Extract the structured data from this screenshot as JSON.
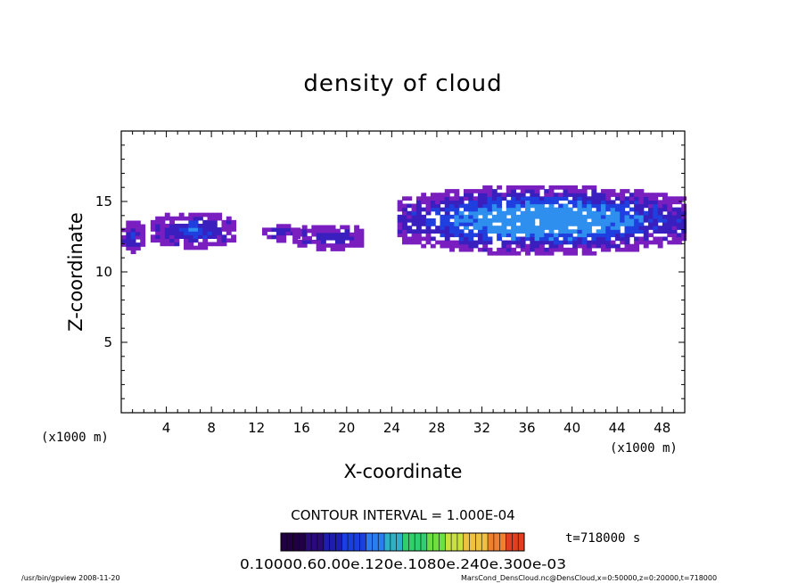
{
  "chart_data": {
    "type": "heatmap",
    "title": "density of cloud",
    "xlabel": "X-coordinate",
    "ylabel": "Z-coordinate",
    "x_unit": "(x1000 m)",
    "y_unit": "(x1000 m)",
    "xlim": [
      0,
      50
    ],
    "ylim": [
      0,
      20
    ],
    "xticks": [
      "4",
      "8",
      "12",
      "16",
      "20",
      "24",
      "28",
      "32",
      "36",
      "40",
      "44",
      "48"
    ],
    "yticks": [
      "5",
      "10",
      "15"
    ],
    "contour_interval": "CONTOUR INTERVAL = 1.000E-04",
    "time_label": "t=718000 s",
    "colorbar_label": "0.10000.60.00e.120e.1080e.240e.300e-03",
    "colorbar_colors": [
      "#200040",
      "#2a0a7a",
      "#1d1db0",
      "#1a3ee0",
      "#2a7cf0",
      "#30b0c8",
      "#2fcf70",
      "#6fdf40",
      "#c8e040",
      "#f0c040",
      "#f08030",
      "#e04020"
    ],
    "footer_left": "/usr/bin/gpview   2008-11-20",
    "footer_right": "MarsCond_DensCloud.nc@DensCloud,x=0:50000,z=0:20000,t=718000",
    "cloud_regions": [
      {
        "x": [
          0.0,
          1.7
        ],
        "z": [
          11.3,
          13.5
        ],
        "peak": 0.25
      },
      {
        "x": [
          2.6,
          9.8
        ],
        "z": [
          11.6,
          14.1
        ],
        "peak": 0.28
      },
      {
        "x": [
          12.5,
          15.5
        ],
        "z": [
          12.1,
          13.2
        ],
        "peak": 0.22
      },
      {
        "x": [
          15.2,
          21.5
        ],
        "z": [
          11.5,
          13.2
        ],
        "peak": 0.18
      },
      {
        "x": [
          24.5,
          50.0
        ],
        "z": [
          11.2,
          15.9
        ],
        "peak": 0.6
      }
    ],
    "cloud_colors": {
      "edge": "#7a1fbf",
      "mid": "#3a1fbf",
      "core": "#1f3fdf",
      "peak": "#2f8fef"
    }
  }
}
